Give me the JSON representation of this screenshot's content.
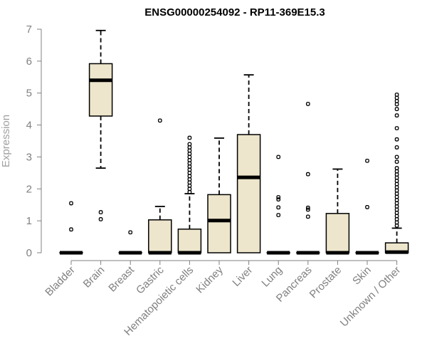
{
  "chart_data": {
    "type": "boxplot",
    "title": "ENSG00000254092 - RP11-369E15.3",
    "xlabel": "",
    "ylabel": "Expression",
    "ylim": [
      0,
      7
    ],
    "yticks": [
      0,
      1,
      2,
      3,
      4,
      5,
      6,
      7
    ],
    "categories": [
      "Bladder",
      "Brain",
      "Breast",
      "Gastric",
      "Hematopoietic cells",
      "Kidney",
      "Liver",
      "Lung",
      "Pancreas",
      "Prostate",
      "Skin",
      "Unknown / Other"
    ],
    "boxes": [
      {
        "name": "Bladder",
        "q1": 0,
        "median": 0,
        "q3": 0,
        "whisker_low": 0,
        "whisker_high": 0,
        "outliers": [
          0.73,
          1.55
        ]
      },
      {
        "name": "Brain",
        "q1": 4.28,
        "median": 5.4,
        "q3": 5.92,
        "whisker_low": 2.65,
        "whisker_high": 6.96,
        "outliers": [
          1.05,
          1.27
        ]
      },
      {
        "name": "Breast",
        "q1": 0,
        "median": 0,
        "q3": 0,
        "whisker_low": 0,
        "whisker_high": 0,
        "outliers": [
          0.64
        ]
      },
      {
        "name": "Gastric",
        "q1": 0,
        "median": 0,
        "q3": 1.03,
        "whisker_low": 0,
        "whisker_high": 1.45,
        "outliers": [
          4.14
        ]
      },
      {
        "name": "Hematopoietic cells",
        "q1": 0,
        "median": 0,
        "q3": 0.74,
        "whisker_low": 0,
        "whisker_high": 1.85,
        "outliers": [
          1.9,
          2.0,
          2.1,
          2.2,
          2.3,
          2.4,
          2.5,
          2.6,
          2.7,
          2.8,
          2.9,
          3.0,
          3.1,
          3.2,
          3.3,
          3.4,
          3.6
        ]
      },
      {
        "name": "Kidney",
        "q1": 0,
        "median": 1.01,
        "q3": 1.82,
        "whisker_low": 0,
        "whisker_high": 3.59,
        "outliers": []
      },
      {
        "name": "Liver",
        "q1": 0,
        "median": 2.36,
        "q3": 3.7,
        "whisker_low": 0,
        "whisker_high": 5.57,
        "outliers": []
      },
      {
        "name": "Lung",
        "q1": 0,
        "median": 0,
        "q3": 0,
        "whisker_low": 0,
        "whisker_high": 0,
        "outliers": [
          1.18,
          1.42,
          1.67,
          1.74,
          3.0
        ]
      },
      {
        "name": "Pancreas",
        "q1": 0,
        "median": 0,
        "q3": 0,
        "whisker_low": 0,
        "whisker_high": 0,
        "outliers": [
          1.13,
          1.35,
          1.41,
          2.46,
          4.66
        ]
      },
      {
        "name": "Prostate",
        "q1": 0,
        "median": 0,
        "q3": 1.23,
        "whisker_low": 0,
        "whisker_high": 2.62,
        "outliers": []
      },
      {
        "name": "Skin",
        "q1": 0,
        "median": 0,
        "q3": 0,
        "whisker_low": 0,
        "whisker_high": 0,
        "outliers": [
          1.43,
          2.88
        ]
      },
      {
        "name": "Unknown / Other",
        "q1": 0,
        "median": 0.02,
        "q3": 0.31,
        "whisker_low": 0,
        "whisker_high": 0.77,
        "outliers": [
          0.85,
          0.95,
          1.05,
          1.15,
          1.25,
          1.35,
          1.45,
          1.55,
          1.65,
          1.75,
          1.85,
          1.95,
          2.05,
          2.15,
          2.25,
          2.35,
          2.45,
          2.55,
          2.65,
          2.85,
          3.0,
          3.3,
          3.55,
          3.9,
          4.3,
          4.5,
          4.65,
          4.75,
          4.85,
          4.95
        ]
      }
    ]
  }
}
